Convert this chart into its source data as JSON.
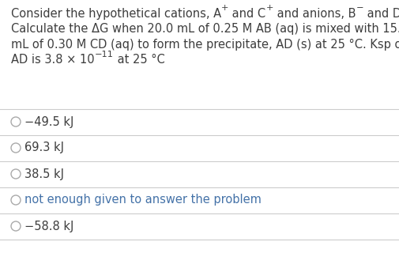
{
  "background_color": "#ffffff",
  "text_color": "#3d3d3d",
  "option_colors": [
    "#3d3d3d",
    "#3d3d3d",
    "#3d3d3d",
    "#4472a8",
    "#3d3d3d"
  ],
  "line_color": "#cccccc",
  "options": [
    "−49.5 kJ",
    "69.3 kJ",
    "38.5 kJ",
    "not enough given to answer the problem",
    "−58.8 kJ"
  ],
  "font_size": 10.5,
  "fig_width": 5.06,
  "fig_height": 3.2,
  "dpi": 100
}
